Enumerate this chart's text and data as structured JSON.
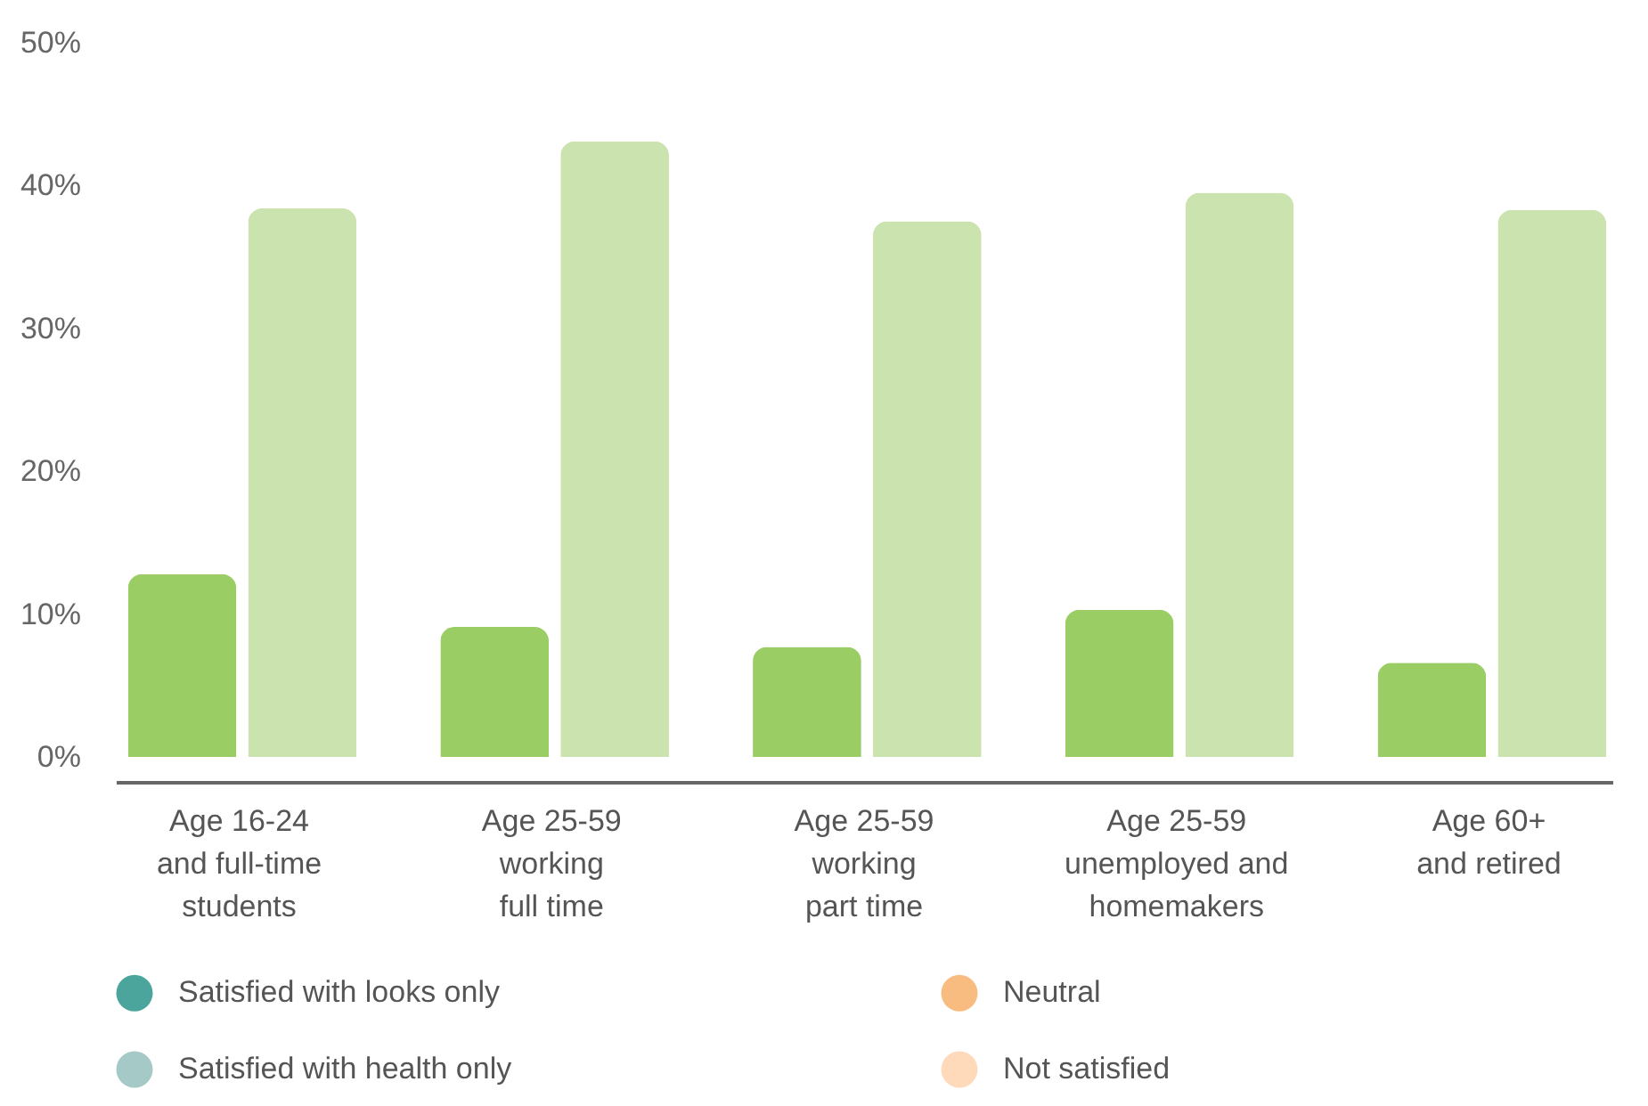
{
  "chart_data": {
    "type": "bar",
    "categories": [
      "Age 16-24\nand full-time\nstudents",
      "Age 25-59\nworking\nfull time",
      "Age 25-59\nworking\npart time",
      "Age 25-59\nunemployed and\nhomemakers",
      "Age 60+\nand retired"
    ],
    "series": [
      {
        "color": "#9bcd65",
        "values": [
          12.8,
          9.1,
          7.7,
          10.3,
          6.6
        ]
      },
      {
        "color": "#cbe3ae",
        "values": [
          38.4,
          43.1,
          37.5,
          39.5,
          38.3
        ]
      },
      {
        "name": "Satisfied with looks only",
        "color": "#007f73",
        "values": [
          null,
          null,
          null,
          null,
          null
        ]
      },
      {
        "name": "Satisfied with health only",
        "color": "#7fb2ae",
        "values": [
          null,
          null,
          null,
          null,
          null
        ]
      },
      {
        "name": "Neutral",
        "color": "#f7a04a",
        "values": [
          null,
          null,
          null,
          null,
          null
        ]
      },
      {
        "name": "Not satisfied",
        "color": "#fdcb9c",
        "values": [
          null,
          null,
          null,
          null,
          null
        ]
      }
    ],
    "ylim": [
      0,
      50
    ],
    "yticks": [
      {
        "value": 0,
        "label": "0%"
      },
      {
        "value": 10,
        "label": "10%"
      },
      {
        "value": 20,
        "label": "20%"
      },
      {
        "value": 30,
        "label": "30%"
      },
      {
        "value": 40,
        "label": "40%"
      },
      {
        "value": 50,
        "label": "50%"
      }
    ],
    "grid": false,
    "legend": "bottom"
  }
}
